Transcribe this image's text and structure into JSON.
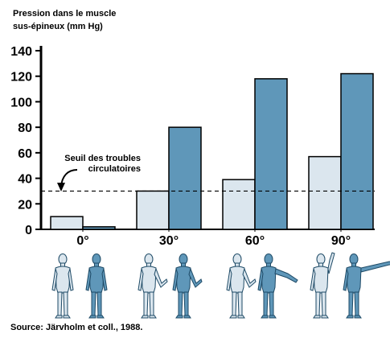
{
  "chart_data": {
    "type": "bar",
    "ylabel_lines": [
      "Pression dans le muscle",
      "sus-épineux (mm Hg)"
    ],
    "yticks": [
      0,
      20,
      40,
      60,
      80,
      100,
      120,
      140
    ],
    "ylim": [
      0,
      140
    ],
    "categories": [
      "0°",
      "30°",
      "60°",
      "90°"
    ],
    "series": [
      {
        "values": [
          10,
          30,
          39,
          57
        ],
        "color": "#dbe6ee"
      },
      {
        "values": [
          2,
          80,
          118,
          122
        ],
        "color": "#5f97b9"
      }
    ],
    "threshold": {
      "value": 30,
      "label_lines": [
        "Seuil des troubles",
        "circulatoires"
      ]
    },
    "grid": false,
    "legend": "none"
  },
  "figures": {
    "light_color": "#dbe6ee",
    "dark_color": "#5f97b9"
  },
  "source": "Source: Järvholm et coll., 1988."
}
